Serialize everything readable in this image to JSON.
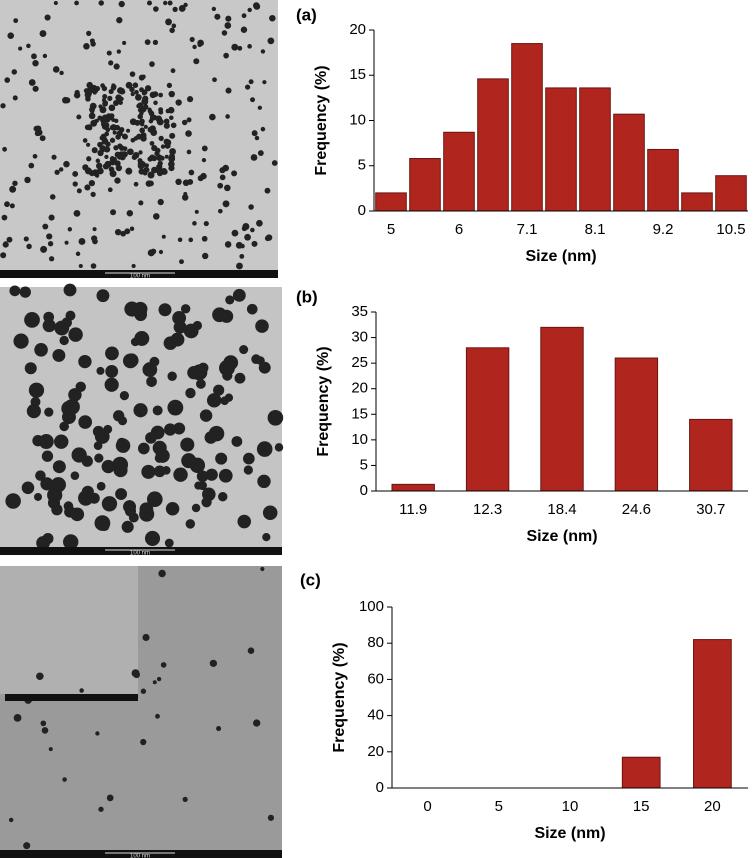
{
  "chart_data": [
    {
      "type": "bar",
      "title": "(a)",
      "xlabel": "Size (nm)",
      "ylabel": "Frequency (%)",
      "categories": [
        "5",
        null,
        "6",
        null,
        "7.1",
        null,
        "8.1",
        null,
        "9.2",
        null,
        "10.5"
      ],
      "values": [
        2,
        5.8,
        8.7,
        14.6,
        18.5,
        13.6,
        13.6,
        10.7,
        6.8,
        2,
        3.9
      ],
      "color": "#b0261f",
      "ylim": [
        0,
        20
      ],
      "yticks": [
        0,
        5,
        10,
        15,
        20
      ],
      "grid": false
    },
    {
      "type": "bar",
      "title": "(b)",
      "xlabel": "Size (nm)",
      "ylabel": "Frequency (%)",
      "categories": [
        "11.9",
        "12.3",
        "18.4",
        "24.6",
        "30.7"
      ],
      "values": [
        1.3,
        28,
        32,
        26,
        14
      ],
      "color": "#b0261f",
      "ylim": [
        0,
        35
      ],
      "yticks": [
        0,
        5,
        10,
        15,
        20,
        25,
        30,
        35
      ],
      "grid": false
    },
    {
      "type": "bar",
      "title": "(c)",
      "xlabel": "Size (nm)",
      "ylabel": "Frequency (%)",
      "categories": [
        "0",
        "5",
        "10",
        "15",
        "20"
      ],
      "values": [
        0,
        0,
        0,
        17,
        82
      ],
      "color": "#b0261f",
      "ylim": [
        0,
        100
      ],
      "yticks": [
        0,
        20,
        40,
        60,
        80,
        100
      ],
      "grid": false
    }
  ],
  "micrographs": [
    {
      "scale_bar": "100 nm"
    },
    {
      "scale_bar": "100 nm"
    },
    {
      "scale_bar": "100 nm"
    }
  ]
}
